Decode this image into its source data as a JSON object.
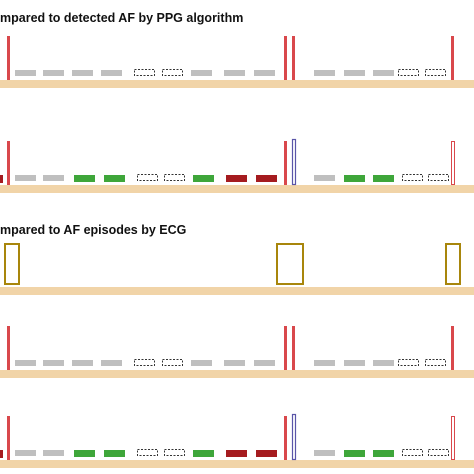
{
  "section_1": {
    "heading": "mpared to detected AF by PPG algorithm"
  },
  "section_2": {
    "heading": "mpared to AF episodes by ECG"
  },
  "legend_colors": {
    "track": "#f1d4a8",
    "onset_marker": "#d9484c",
    "detection_marker": "#5a55a8",
    "unflagged": "#bfbfbf",
    "flagged_green": "#3ea63a",
    "flagged_red": "#a51b1f",
    "missing_outline": "#333333",
    "ecg_episode": "#a8860c"
  },
  "rows": [
    {
      "id": "ppg-row-1",
      "sequence": [
        "marker-onset",
        "grey",
        "grey",
        "grey",
        "grey",
        "dashed",
        "dashed",
        "grey",
        "grey",
        "grey",
        "marker-onset",
        "marker-onset",
        "grey",
        "grey",
        "grey",
        "dashed",
        "dashed",
        "marker-onset"
      ]
    },
    {
      "id": "ppg-row-2",
      "sequence": [
        "edge-red",
        "marker-onset",
        "grey",
        "grey",
        "green",
        "green",
        "dashed",
        "dashed",
        "green",
        "red",
        "red",
        "marker-onset",
        "marker-detect",
        "grey",
        "green",
        "green",
        "dashed",
        "dashed",
        "marker-onset-hollow"
      ]
    },
    {
      "id": "ecg-row-1",
      "sequence": [
        "ecg-episode",
        "ecg-episode",
        "ecg-episode"
      ]
    },
    {
      "id": "ecg-row-2",
      "sequence": [
        "marker-onset",
        "grey",
        "grey",
        "grey",
        "grey",
        "dashed",
        "dashed",
        "grey",
        "grey",
        "grey",
        "marker-onset",
        "marker-onset",
        "grey",
        "grey",
        "grey",
        "dashed",
        "dashed",
        "marker-onset"
      ]
    },
    {
      "id": "ecg-row-3",
      "sequence": [
        "edge-red",
        "marker-onset",
        "grey",
        "grey",
        "green",
        "green",
        "dashed",
        "dashed",
        "green",
        "red",
        "red",
        "marker-onset",
        "marker-detect",
        "grey",
        "green",
        "green",
        "dashed",
        "dashed",
        "marker-onset-hollow"
      ]
    }
  ]
}
